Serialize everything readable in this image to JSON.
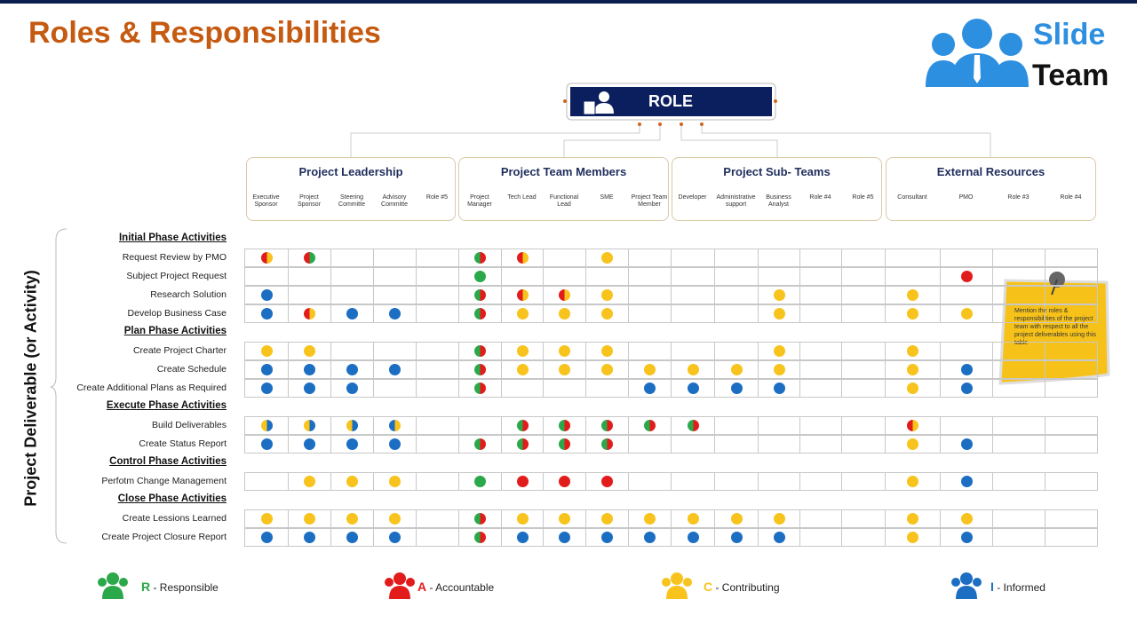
{
  "title": "Roles & Responsibilities",
  "logo": {
    "line1": "Slide",
    "line2": "Team"
  },
  "role_box": "ROLE",
  "side_label": "Project Deliverable (or Activity)",
  "groups": [
    {
      "name": "Project Leadership",
      "roles": [
        "Executive Sponsor",
        "Project Sponsor",
        "Steering Committe",
        "Advisory Committe",
        "Role #5"
      ]
    },
    {
      "name": "Project Team Members",
      "roles": [
        "Project Manager",
        "Tech Lead",
        "Functional Lead",
        "SME",
        "Project Team Member"
      ]
    },
    {
      "name": "Project Sub- Teams",
      "roles": [
        "Developer",
        "Administrative support",
        "Business Analyst",
        "Role #4",
        "Role #5"
      ]
    },
    {
      "name": "External Resources",
      "roles": [
        "Consultant",
        "PMO",
        "Role #3",
        "Role #4"
      ]
    }
  ],
  "matrix": {
    "sections": [
      {
        "title": "Initial Phase Activities",
        "rows": [
          {
            "label": "Request Review by PMO",
            "cells": [
              "AC",
              "AR",
              null,
              null,
              null,
              "RA",
              "AC",
              null,
              "C",
              null,
              null,
              null,
              null,
              null,
              null,
              null,
              null,
              null,
              null
            ]
          },
          {
            "label": "Subject Project Request",
            "cells": [
              null,
              null,
              null,
              null,
              null,
              "R",
              null,
              null,
              null,
              null,
              null,
              null,
              null,
              null,
              null,
              null,
              "A",
              null,
              null
            ]
          },
          {
            "label": "Research Solution",
            "cells": [
              "I",
              null,
              null,
              null,
              null,
              "RA",
              "AC",
              "AC",
              "C",
              null,
              null,
              null,
              "C",
              null,
              null,
              "C",
              null,
              null,
              null
            ]
          },
          {
            "label": "Develop Business Case",
            "cells": [
              "I",
              "AC",
              "I",
              "I",
              null,
              "RA",
              "C",
              "C",
              "C",
              null,
              null,
              null,
              "C",
              null,
              null,
              "C",
              "C",
              null,
              null
            ]
          }
        ]
      },
      {
        "title": "Plan Phase Activities",
        "rows": [
          {
            "label": "Create Project Charter",
            "cells": [
              "C",
              "C",
              null,
              null,
              null,
              "RA",
              "C",
              "C",
              "C",
              null,
              null,
              null,
              "C",
              null,
              null,
              "C",
              null,
              null,
              null
            ]
          },
          {
            "label": "Create Schedule",
            "cells": [
              "I",
              "I",
              "I",
              "I",
              null,
              "RA",
              "C",
              "C",
              "C",
              "C",
              "C",
              "C",
              "C",
              null,
              null,
              "C",
              "I",
              null,
              null
            ]
          },
          {
            "label": "Create Additional Plans as Required",
            "cells": [
              "I",
              "I",
              "I",
              null,
              null,
              "RA",
              null,
              null,
              null,
              "I",
              "I",
              "I",
              "I",
              null,
              null,
              "C",
              "I",
              null,
              null
            ]
          }
        ]
      },
      {
        "title": "Execute Phase Activities",
        "rows": [
          {
            "label": "Build Deliverables",
            "cells": [
              "CI",
              "CI",
              "CI",
              "IC",
              null,
              null,
              "RA",
              "RA",
              "RA",
              "RA",
              "RA",
              null,
              null,
              null,
              null,
              "AC",
              null,
              null,
              null
            ]
          },
          {
            "label": "Create Status Report",
            "cells": [
              "I",
              "I",
              "I",
              "I",
              null,
              "RA",
              "RA",
              "RA",
              "RA",
              null,
              null,
              null,
              null,
              null,
              null,
              "C",
              "I",
              null,
              null
            ]
          }
        ]
      },
      {
        "title": "Control Phase Activities",
        "rows": [
          {
            "label": "Perfotm Change Management",
            "cells": [
              null,
              "C",
              "C",
              "C",
              null,
              "R",
              "A",
              "A",
              "A",
              null,
              null,
              null,
              null,
              null,
              null,
              "C",
              "I",
              null,
              null
            ]
          }
        ]
      },
      {
        "title": "Close Phase Activities",
        "rows": [
          {
            "label": "Create Lessions Learned",
            "cells": [
              "C",
              "C",
              "C",
              "C",
              null,
              "RA",
              "C",
              "C",
              "C",
              "C",
              "C",
              "C",
              "C",
              null,
              null,
              "C",
              "C",
              null,
              null
            ]
          },
          {
            "label": "Create Project Closure Report",
            "cells": [
              "I",
              "I",
              "I",
              "I",
              null,
              "RA",
              "I",
              "I",
              "I",
              "I",
              "I",
              "I",
              "I",
              null,
              null,
              "C",
              "I",
              null,
              null
            ]
          }
        ]
      }
    ]
  },
  "note": "Mention the roles & responsibilities of the project team with respect to all the project deliverables using this table",
  "legend": [
    {
      "letter": "R",
      "text": " - Responsible",
      "color": "#2ba84a"
    },
    {
      "letter": "A",
      "text": " - Accountable",
      "color": "#e21b1b"
    },
    {
      "letter": "C",
      "text": " - Contributing",
      "color": "#f7c31c"
    },
    {
      "letter": "I",
      "text": " - Informed",
      "color": "#1b6ec2"
    }
  ]
}
